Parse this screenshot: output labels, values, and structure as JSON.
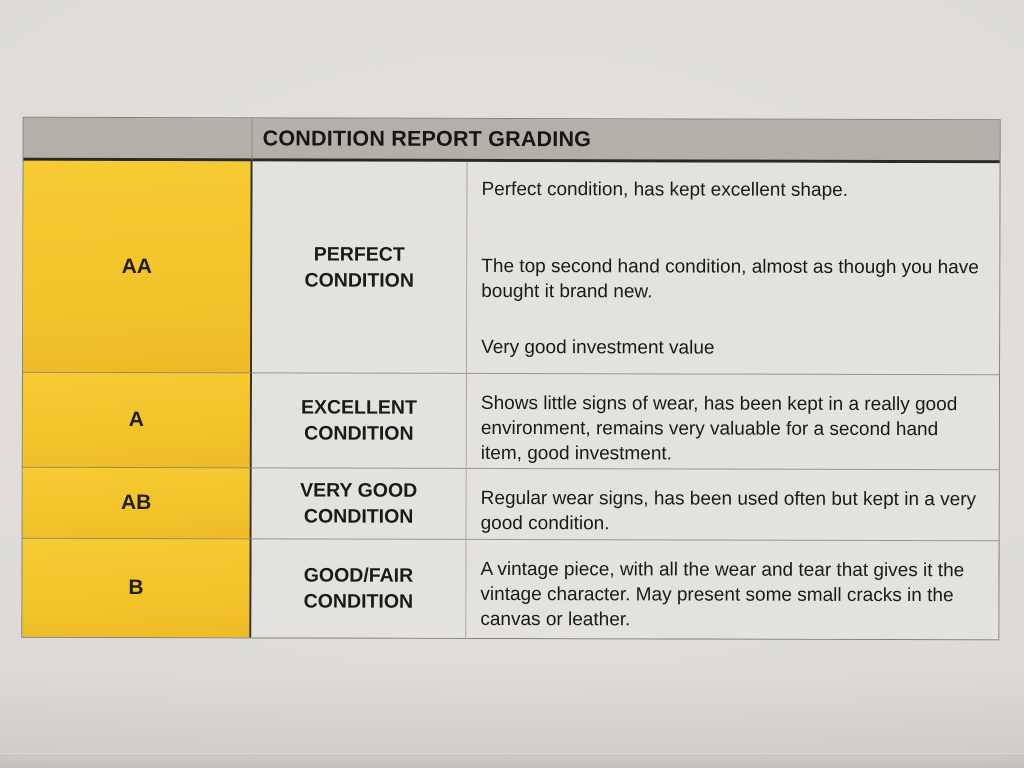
{
  "document": {
    "header": {
      "title": "CONDITION REPORT GRADING"
    },
    "rows": [
      {
        "grade": "AA",
        "label_lines": [
          "PERFECT",
          "CONDITION"
        ],
        "paragraphs": [
          "Perfect condition, has kept excellent shape.",
          "The top second hand condition, almost as though you have bought it brand new.",
          "Very good investment value"
        ]
      },
      {
        "grade": "A",
        "label_lines": [
          "EXCELLENT",
          "CONDITION"
        ],
        "paragraphs": [
          "Shows little signs of wear, has been kept in a really good environment, remains very valuable for a second hand item, good investment."
        ]
      },
      {
        "grade": "AB",
        "label_lines": [
          "VERY GOOD",
          "CONDITION"
        ],
        "paragraphs": [
          "Regular wear signs, has been used often but kept in a very good condition."
        ]
      },
      {
        "grade": "B",
        "label_lines": [
          "GOOD/FAIR",
          "CONDITION"
        ],
        "paragraphs": [
          "A vintage piece, with all the wear and tear that gives it the vintage character. May present some small cracks in the canvas or leather."
        ]
      }
    ],
    "colors": {
      "grade_column_yellow": "#f4c62d",
      "header_gray": "#b3b0a9",
      "cell_gray": "#e4e2de",
      "paper": "#dedbd8",
      "ink": "#1b1a18"
    }
  }
}
